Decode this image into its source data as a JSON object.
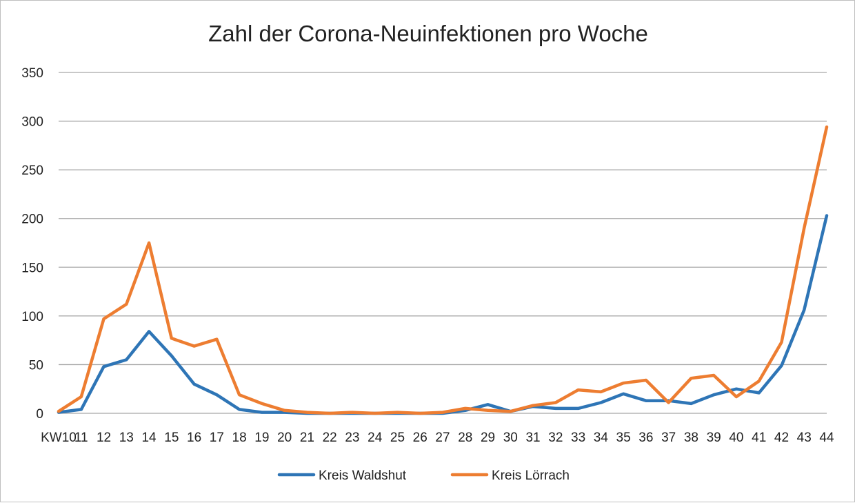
{
  "chart_data": {
    "type": "line",
    "title": "Zahl der Corona-Neuinfektionen pro Woche",
    "xlabel": "",
    "ylabel": "",
    "categories": [
      "KW10",
      "11",
      "12",
      "13",
      "14",
      "15",
      "16",
      "17",
      "18",
      "19",
      "20",
      "21",
      "22",
      "23",
      "24",
      "25",
      "26",
      "27",
      "28",
      "29",
      "30",
      "31",
      "32",
      "33",
      "34",
      "35",
      "36",
      "37",
      "38",
      "39",
      "40",
      "41",
      "42",
      "43",
      "44"
    ],
    "ylim": [
      0,
      350
    ],
    "yticks": [
      "0",
      "50",
      "100",
      "150",
      "200",
      "250",
      "300",
      "350"
    ],
    "grid": true,
    "legend_position": "bottom",
    "series": [
      {
        "name": "Kreis Waldshut",
        "color": "#2E75B6",
        "values": [
          1,
          4,
          48,
          55,
          84,
          59,
          30,
          19,
          4,
          1,
          1,
          0,
          0,
          0,
          0,
          0,
          0,
          0,
          3,
          9,
          2,
          7,
          5,
          5,
          11,
          20,
          13,
          13,
          10,
          19,
          25,
          21,
          49,
          106,
          203
        ]
      },
      {
        "name": "Kreis Lörrach",
        "color": "#ED7D31",
        "values": [
          2,
          17,
          97,
          112,
          175,
          77,
          69,
          76,
          19,
          10,
          3,
          1,
          0,
          1,
          0,
          1,
          0,
          1,
          5,
          3,
          2,
          8,
          11,
          24,
          22,
          31,
          34,
          11,
          36,
          39,
          17,
          33,
          73,
          190,
          294
        ]
      }
    ]
  }
}
